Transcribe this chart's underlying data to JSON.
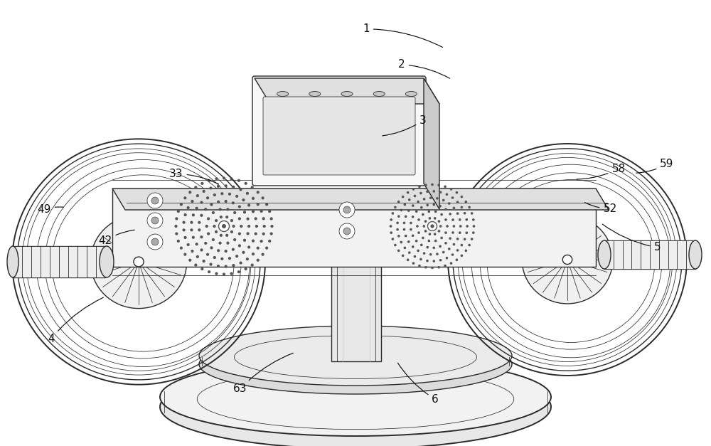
{
  "bg_color": "#ffffff",
  "line_color": "#2a2a2a",
  "fill_light": "#f2f2f2",
  "fill_mid": "#e0e0e0",
  "fill_dark": "#cccccc",
  "label_color": "#111111",
  "fig_width": 10.0,
  "fig_height": 6.27,
  "lw_main": 1.0,
  "lw_thin": 0.55,
  "lw_thick": 1.4,
  "label_font_size": 11,
  "annotations": [
    {
      "label": "1",
      "txt": [
        0.515,
        0.065
      ],
      "arr": [
        0.625,
        0.108
      ]
    },
    {
      "label": "2",
      "txt": [
        0.565,
        0.145
      ],
      "arr": [
        0.635,
        0.178
      ]
    },
    {
      "label": "3",
      "txt": [
        0.595,
        0.27
      ],
      "arr": [
        0.535,
        0.305
      ]
    },
    {
      "label": "4",
      "txt": [
        0.072,
        0.76
      ],
      "arr": [
        0.148,
        0.665
      ]
    },
    {
      "label": "5",
      "txt": [
        0.925,
        0.555
      ],
      "arr": [
        0.845,
        0.5
      ]
    },
    {
      "label": "6",
      "txt": [
        0.612,
        0.895
      ],
      "arr": [
        0.558,
        0.81
      ]
    },
    {
      "label": "33",
      "txt": [
        0.248,
        0.39
      ],
      "arr": [
        0.31,
        0.415
      ]
    },
    {
      "label": "42",
      "txt": [
        0.148,
        0.54
      ],
      "arr": [
        0.192,
        0.515
      ]
    },
    {
      "label": "49",
      "txt": [
        0.062,
        0.47
      ],
      "arr": [
        0.092,
        0.465
      ]
    },
    {
      "label": "52",
      "txt": [
        0.858,
        0.468
      ],
      "arr": [
        0.82,
        0.452
      ]
    },
    {
      "label": "58",
      "txt": [
        0.87,
        0.378
      ],
      "arr": [
        0.808,
        0.402
      ]
    },
    {
      "label": "59",
      "txt": [
        0.938,
        0.368
      ],
      "arr": [
        0.892,
        0.388
      ]
    },
    {
      "label": "63",
      "txt": [
        0.338,
        0.872
      ],
      "arr": [
        0.415,
        0.79
      ]
    }
  ]
}
